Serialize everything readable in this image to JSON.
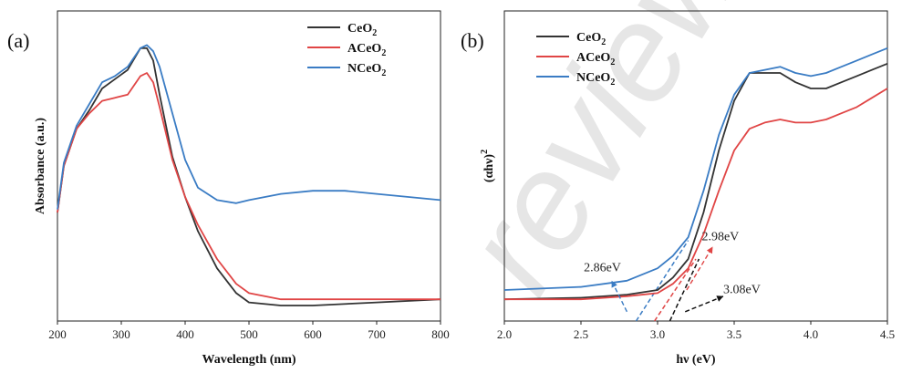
{
  "watermark": "review",
  "chart_data": [
    {
      "panel_label": "(a)",
      "type": "line",
      "xlabel": "Wavelength (nm)",
      "ylabel": "Absorbance (a.u.)",
      "xlim": [
        200,
        800
      ],
      "ylim": [
        0,
        1
      ],
      "xticks": [
        "200",
        "300",
        "400",
        "500",
        "600",
        "700",
        "800"
      ],
      "legend_position": "top-right",
      "series": [
        {
          "name": "CeO",
          "sub": "2",
          "color": "#333333",
          "x": [
            200,
            210,
            230,
            250,
            270,
            290,
            310,
            330,
            340,
            350,
            360,
            380,
            400,
            420,
            450,
            480,
            500,
            550,
            600,
            700,
            800
          ],
          "y": [
            0.35,
            0.5,
            0.62,
            0.68,
            0.75,
            0.78,
            0.81,
            0.88,
            0.88,
            0.84,
            0.73,
            0.53,
            0.4,
            0.29,
            0.17,
            0.09,
            0.06,
            0.05,
            0.05,
            0.06,
            0.07
          ]
        },
        {
          "name": "ACeO",
          "sub": "2",
          "color": "#e04545",
          "x": [
            200,
            210,
            230,
            250,
            270,
            290,
            310,
            330,
            340,
            350,
            360,
            380,
            400,
            420,
            450,
            480,
            500,
            550,
            600,
            700,
            800
          ],
          "y": [
            0.35,
            0.5,
            0.62,
            0.67,
            0.71,
            0.72,
            0.73,
            0.79,
            0.8,
            0.77,
            0.69,
            0.52,
            0.4,
            0.31,
            0.2,
            0.12,
            0.09,
            0.07,
            0.07,
            0.07,
            0.07
          ]
        },
        {
          "name": "NCeO",
          "sub": "2",
          "color": "#3a7cc4",
          "x": [
            200,
            210,
            230,
            250,
            270,
            290,
            310,
            330,
            340,
            350,
            360,
            380,
            400,
            420,
            450,
            480,
            500,
            550,
            600,
            650,
            700,
            750,
            800
          ],
          "y": [
            0.36,
            0.51,
            0.63,
            0.7,
            0.77,
            0.79,
            0.82,
            0.88,
            0.89,
            0.87,
            0.82,
            0.67,
            0.52,
            0.43,
            0.39,
            0.38,
            0.39,
            0.41,
            0.42,
            0.42,
            0.41,
            0.4,
            0.39
          ]
        }
      ]
    },
    {
      "panel_label": "(b)",
      "type": "line",
      "xlabel": "hν (eV)",
      "ylabel": "(αhν)",
      "ylabel_sup": "2",
      "xlim": [
        2.0,
        4.5
      ],
      "ylim": [
        0,
        1
      ],
      "xticks": [
        "2.0",
        "2.5",
        "3.0",
        "3.5",
        "4.0",
        "4.5"
      ],
      "legend_position": "top-left",
      "series": [
        {
          "name": "CeO",
          "sub": "2",
          "color": "#333333",
          "x": [
            2.0,
            2.5,
            2.8,
            3.0,
            3.1,
            3.2,
            3.3,
            3.4,
            3.5,
            3.6,
            3.7,
            3.8,
            3.9,
            4.0,
            4.1,
            4.2,
            4.3,
            4.4,
            4.5
          ],
          "y": [
            0.07,
            0.075,
            0.085,
            0.1,
            0.14,
            0.2,
            0.35,
            0.55,
            0.71,
            0.8,
            0.8,
            0.8,
            0.77,
            0.75,
            0.75,
            0.77,
            0.79,
            0.81,
            0.83
          ]
        },
        {
          "name": "ACeO",
          "sub": "2",
          "color": "#e04545",
          "x": [
            2.0,
            2.5,
            2.8,
            3.0,
            3.1,
            3.2,
            3.3,
            3.4,
            3.5,
            3.6,
            3.7,
            3.8,
            3.9,
            4.0,
            4.1,
            4.2,
            4.3,
            4.4,
            4.5
          ],
          "y": [
            0.07,
            0.07,
            0.08,
            0.09,
            0.12,
            0.17,
            0.28,
            0.42,
            0.55,
            0.62,
            0.64,
            0.65,
            0.64,
            0.64,
            0.65,
            0.67,
            0.69,
            0.72,
            0.75
          ]
        },
        {
          "name": "NCeO",
          "sub": "2",
          "color": "#3a7cc4",
          "x": [
            2.0,
            2.5,
            2.8,
            3.0,
            3.1,
            3.2,
            3.3,
            3.4,
            3.5,
            3.6,
            3.7,
            3.8,
            3.9,
            4.0,
            4.1,
            4.2,
            4.3,
            4.4,
            4.5
          ],
          "y": [
            0.1,
            0.11,
            0.13,
            0.17,
            0.21,
            0.27,
            0.42,
            0.6,
            0.73,
            0.8,
            0.81,
            0.82,
            0.8,
            0.79,
            0.8,
            0.82,
            0.84,
            0.86,
            0.88
          ]
        }
      ],
      "tangent_lines": [
        {
          "color": "#3a7cc4",
          "from": [
            2.86,
            0.0
          ],
          "to": [
            3.2,
            0.26
          ]
        },
        {
          "color": "#e04545",
          "from": [
            2.98,
            0.0
          ],
          "to": [
            3.25,
            0.2
          ]
        },
        {
          "color": "#111111",
          "from": [
            3.08,
            0.0
          ],
          "to": [
            3.27,
            0.2
          ]
        }
      ],
      "annotations": [
        {
          "text": "2.86eV",
          "color": "#3a7cc4",
          "text_at": [
            2.64,
            0.16
          ],
          "arrow_from": [
            2.8,
            0.03
          ],
          "arrow_to": [
            2.7,
            0.13
          ]
        },
        {
          "text": "2.98eV",
          "color": "#e04545",
          "text_at": [
            3.41,
            0.26
          ],
          "arrow_from": [
            3.19,
            0.1
          ],
          "arrow_to": [
            3.36,
            0.24
          ]
        },
        {
          "text": "3.08eV",
          "color": "#111111",
          "text_at": [
            3.55,
            0.09
          ],
          "arrow_from": [
            3.18,
            0.03
          ],
          "arrow_to": [
            3.43,
            0.08
          ]
        }
      ]
    }
  ]
}
